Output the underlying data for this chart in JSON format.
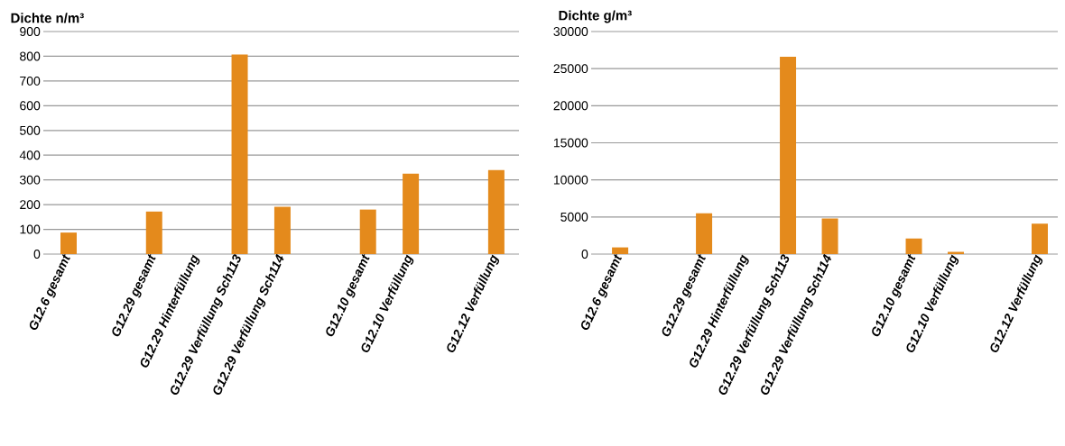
{
  "chart_data": [
    {
      "type": "bar",
      "ylabel": "Dichte n/m³",
      "categories": [
        "G12.6 gesamt",
        null,
        "G12.29 gesamt",
        "G12.29 Hinterfüllung",
        "G12.29 Verfüllung Sch113",
        "G12.29 Verfüllung Sch114",
        null,
        "G12.10 gesamt",
        "G12.10 Verfüllung",
        null,
        "G12.12 Verfüllung"
      ],
      "values": [
        87,
        null,
        172,
        null,
        807,
        191,
        null,
        180,
        325,
        null,
        340
      ],
      "color": "#e48a1c",
      "ylim": [
        0,
        900
      ],
      "yticks": [
        0,
        100,
        200,
        300,
        400,
        500,
        600,
        700,
        800,
        900
      ],
      "grid": "y"
    },
    {
      "type": "bar",
      "ylabel": "Dichte g/m³",
      "categories": [
        "G12.6 gesamt",
        null,
        "G12.29 gesamt",
        "G12.29 Hinterfüllung",
        "G12.29 Verfüllung Sch113",
        "G12.29 Verfüllung Sch114",
        null,
        "G12.10 gesamt",
        "G12.10 Verfüllung",
        null,
        "G12.12 Verfüllung"
      ],
      "values": [
        900,
        null,
        5500,
        null,
        26600,
        4800,
        null,
        2100,
        300,
        null,
        4100
      ],
      "color": "#e48a1c",
      "ylim": [
        0,
        30000
      ],
      "yticks": [
        0,
        5000,
        10000,
        15000,
        20000,
        25000,
        30000
      ],
      "grid": "y"
    }
  ]
}
